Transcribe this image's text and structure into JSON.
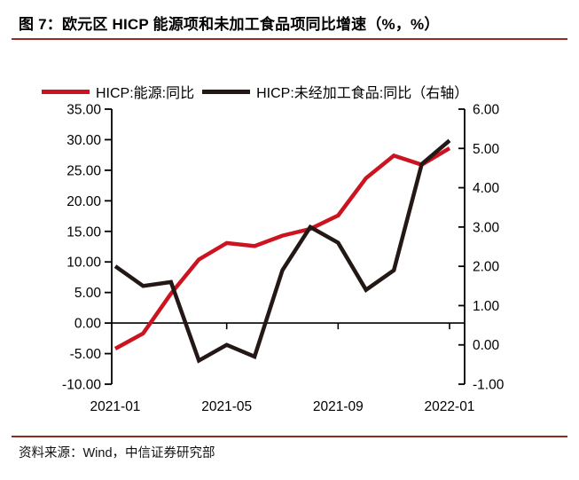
{
  "figure": {
    "title": "图 7：欧元区 HICP 能源项和未加工食品项同比增速（%，%）",
    "source": "资料来源：Wind，中信证券研究部"
  },
  "colors": {
    "energy_line": "#cc1420",
    "food_line": "#231815",
    "top_rule": "#962f28",
    "bottom_rule": "#8f2a23",
    "axis": "#000000"
  },
  "chart_data": {
    "type": "line",
    "title": "欧元区 HICP 能源项和未加工食品项同比增速",
    "x": [
      "2021-01",
      "2021-02",
      "2021-03",
      "2021-04",
      "2021-05",
      "2021-06",
      "2021-07",
      "2021-08",
      "2021-09",
      "2021-10",
      "2021-11",
      "2021-12",
      "2022-01"
    ],
    "series": [
      {
        "name": "HICP:能源:同比",
        "axis": "left",
        "color": "#cc1420",
        "values": [
          -4.2,
          -1.7,
          4.8,
          10.4,
          13.1,
          12.6,
          14.3,
          15.4,
          17.6,
          23.7,
          27.4,
          25.9,
          28.6
        ]
      },
      {
        "name": "HICP:未经加工食品:同比（右轴）",
        "axis": "right",
        "color": "#231815",
        "values": [
          2.0,
          1.5,
          1.6,
          -0.4,
          0.0,
          -0.3,
          1.9,
          3.0,
          2.6,
          1.4,
          1.9,
          4.6,
          5.2
        ]
      }
    ],
    "left_axis": {
      "min": -10,
      "max": 35,
      "step": 5,
      "tick_labels": [
        "35.00",
        "30.00",
        "25.00",
        "20.00",
        "15.00",
        "10.00",
        "5.00",
        "0.00",
        "-5.00",
        "-10.00"
      ]
    },
    "right_axis": {
      "min": -1,
      "max": 6,
      "step": 1,
      "tick_labels": [
        "6.00",
        "5.00",
        "4.00",
        "3.00",
        "2.00",
        "1.00",
        "0.00",
        "-1.00"
      ]
    },
    "x_tick_labels": [
      "2021-01",
      "2021-05",
      "2021-09",
      "2022-01"
    ],
    "x_axis_cross_at_left_value": 0,
    "grid": false,
    "legend_position": "top"
  }
}
